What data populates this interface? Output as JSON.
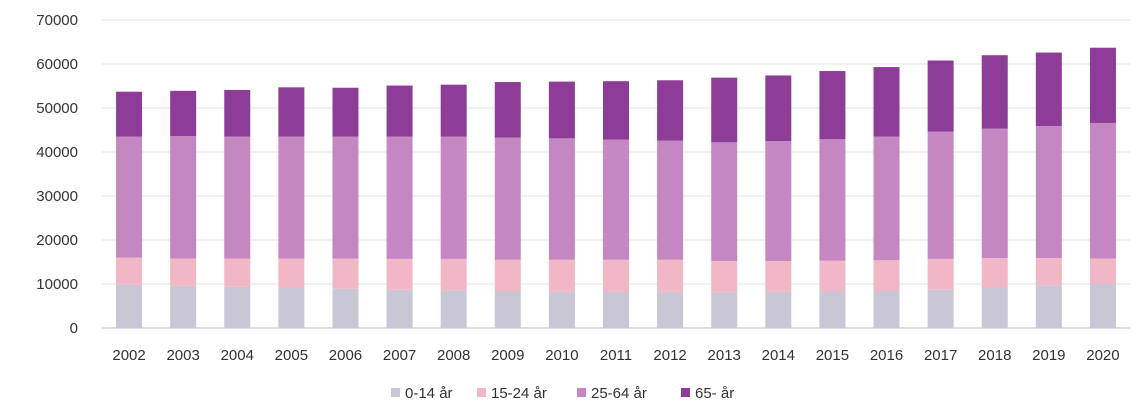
{
  "chart_data": {
    "type": "bar",
    "stacked": true,
    "categories": [
      "2002",
      "2003",
      "2004",
      "2005",
      "2006",
      "2007",
      "2008",
      "2009",
      "2010",
      "2011",
      "2012",
      "2013",
      "2014",
      "2015",
      "2016",
      "2017",
      "2018",
      "2019",
      "2020"
    ],
    "series": [
      {
        "name": "0-14 år",
        "color": "#c9c6d6",
        "values": [
          9800,
          9600,
          9400,
          9200,
          8900,
          8700,
          8500,
          8300,
          8200,
          8200,
          8200,
          8100,
          8200,
          8300,
          8400,
          8700,
          9200,
          9700,
          10000
        ]
      },
      {
        "name": "15-24 år",
        "color": "#f2b7c6",
        "values": [
          6200,
          6200,
          6400,
          6600,
          6900,
          7000,
          7200,
          7200,
          7300,
          7300,
          7300,
          7100,
          7000,
          7000,
          7000,
          7000,
          6700,
          6200,
          5800
        ]
      },
      {
        "name": "25-64 år",
        "color": "#c587c2",
        "values": [
          27500,
          27800,
          27700,
          27700,
          27700,
          27800,
          27800,
          27800,
          27600,
          27300,
          27100,
          27000,
          27300,
          27600,
          28100,
          28900,
          29400,
          30000,
          30800
        ]
      },
      {
        "name": "65- år",
        "color": "#8d3d98",
        "values": [
          10200,
          10300,
          10600,
          11200,
          11100,
          11600,
          11800,
          12600,
          12900,
          13300,
          13700,
          14700,
          14900,
          15500,
          15800,
          16200,
          16700,
          16700,
          17100
        ]
      }
    ],
    "ylim": [
      0,
      70000
    ],
    "yticks": [
      "0",
      "10000",
      "20000",
      "30000",
      "40000",
      "50000",
      "60000",
      "70000"
    ],
    "grid": true,
    "legend": "bottom"
  }
}
